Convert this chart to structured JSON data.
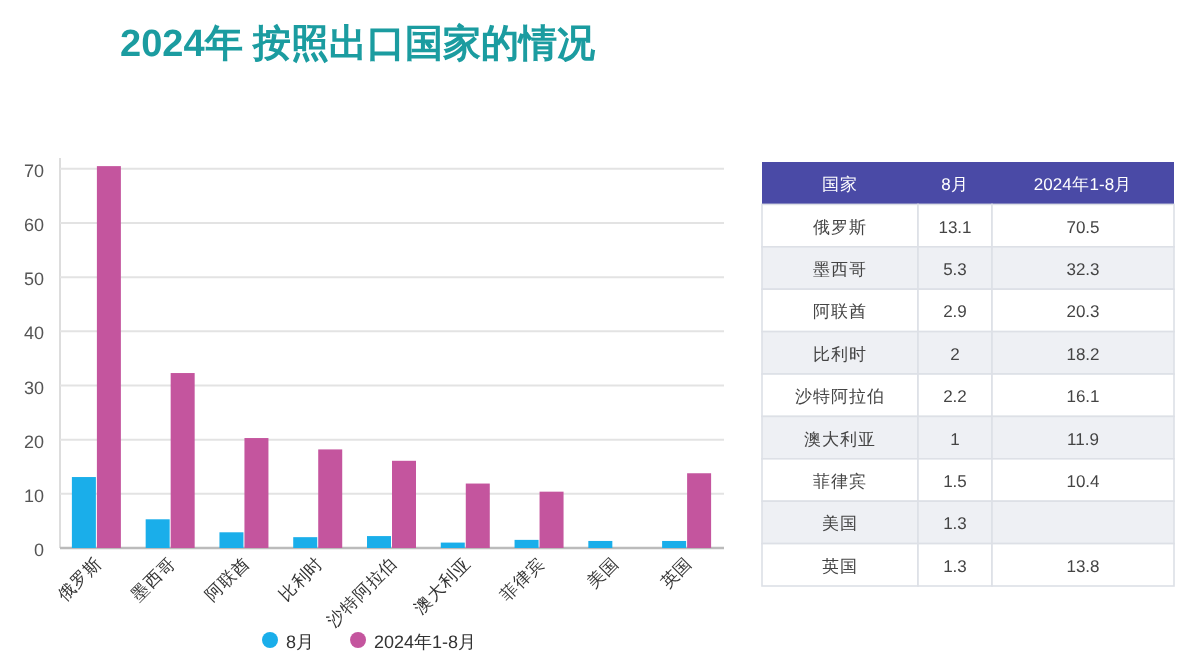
{
  "chart_data": [
    {
      "type": "bar",
      "title": "2024年 按照出口国家的情况",
      "categories": [
        "俄罗斯",
        "墨西哥",
        "阿联酋",
        "比利时",
        "沙特阿拉伯",
        "澳大利亚",
        "菲律宾",
        "美国",
        "英国"
      ],
      "series": [
        {
          "name": "8月",
          "color": "#1aaeea",
          "values": [
            13.1,
            5.3,
            2.9,
            2,
            2.2,
            1,
            1.5,
            1.3,
            1.3
          ]
        },
        {
          "name": "2024年1-8月",
          "color": "#c4559e",
          "values": [
            70.5,
            32.3,
            20.3,
            18.2,
            16.1,
            11.9,
            10.4,
            null,
            13.8
          ]
        }
      ],
      "ylim": [
        0,
        72
      ],
      "yticks": [
        0,
        10,
        20,
        30,
        40,
        50,
        60,
        70
      ],
      "grid": "y",
      "legend": "bottom"
    },
    {
      "type": "heatmap",
      "ylabel": "国家",
      "categories": [
        "8月",
        "2024年1-8月"
      ],
      "y_categories": [
        "俄罗斯",
        "墨西哥",
        "阿联酋",
        "比利时",
        "沙特阿拉伯",
        "澳大利亚",
        "菲律宾",
        "美国",
        "英国"
      ],
      "cells": [
        [
          13.1,
          70.5
        ],
        [
          5.3,
          32.3
        ],
        [
          2.9,
          20.3
        ],
        [
          2,
          18.2
        ],
        [
          2.2,
          16.1
        ],
        [
          1,
          11.9
        ],
        [
          1.5,
          10.4
        ],
        [
          1.3,
          null
        ],
        [
          1.3,
          13.8
        ]
      ],
      "cell_labels": [
        [
          "13.1",
          "70.5"
        ],
        [
          "5.3",
          "32.3"
        ],
        [
          "2.9",
          "20.3"
        ],
        [
          "2",
          "18.2"
        ],
        [
          "2.2",
          "16.1"
        ],
        [
          "1",
          "11.9"
        ],
        [
          "1.5",
          "10.4"
        ],
        [
          "1.3",
          null
        ],
        [
          "1.3",
          "13.8"
        ]
      ]
    }
  ]
}
